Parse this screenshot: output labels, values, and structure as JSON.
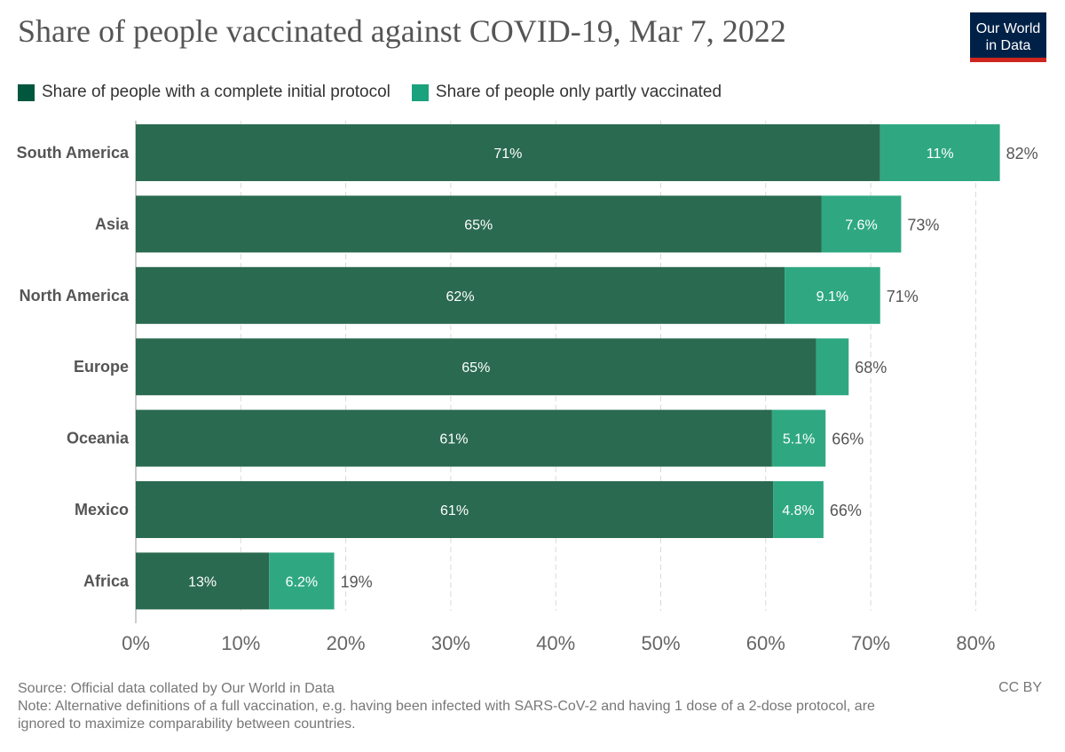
{
  "header": {
    "title": "Share of people vaccinated against COVID-19, Mar 7, 2022",
    "logo_line1": "Our World",
    "logo_line2": "in Data"
  },
  "legend": {
    "items": [
      {
        "label": "Share of people with a complete initial protocol",
        "color": "#00573d"
      },
      {
        "label": "Share of people only partly vaccinated",
        "color": "#1aa27c"
      }
    ]
  },
  "chart_data": {
    "type": "bar",
    "orientation": "horizontal",
    "stacked": true,
    "title": "Share of people vaccinated against COVID-19, Mar 7, 2022",
    "xlabel": "",
    "ylabel": "",
    "xlim": [
      0,
      80
    ],
    "grid": true,
    "legend_position": "top-left",
    "x_ticks": [
      "0%",
      "10%",
      "20%",
      "30%",
      "40%",
      "50%",
      "60%",
      "70%",
      "80%"
    ],
    "categories": [
      "South America",
      "Asia",
      "North America",
      "Europe",
      "Oceania",
      "Mexico",
      "Africa"
    ],
    "series": [
      {
        "name": "Share of people with a complete initial protocol",
        "color": "#2a6a50",
        "values": [
          70.9,
          65.3,
          61.8,
          64.8,
          60.6,
          60.7,
          12.7
        ],
        "labels": [
          "71%",
          "65%",
          "62%",
          "65%",
          "61%",
          "61%",
          "13%"
        ]
      },
      {
        "name": "Share of people only partly vaccinated",
        "color": "#2fa882",
        "values": [
          11.4,
          7.6,
          9.1,
          3.1,
          5.1,
          4.8,
          6.2
        ],
        "labels": [
          "11%",
          "7.6%",
          "9.1%",
          "",
          "5.1%",
          "4.8%",
          "6.2%"
        ]
      }
    ],
    "totals": [
      "82%",
      "73%",
      "71%",
      "68%",
      "66%",
      "66%",
      "19%"
    ]
  },
  "footer": {
    "source": "Source: Official data collated by Our World in Data",
    "note1": "Note: Alternative definitions of a full vaccination, e.g. having been infected with SARS-CoV-2 and having 1 dose of a 2-dose protocol, are",
    "note2": "ignored to maximize comparability between countries.",
    "license": "CC BY"
  }
}
